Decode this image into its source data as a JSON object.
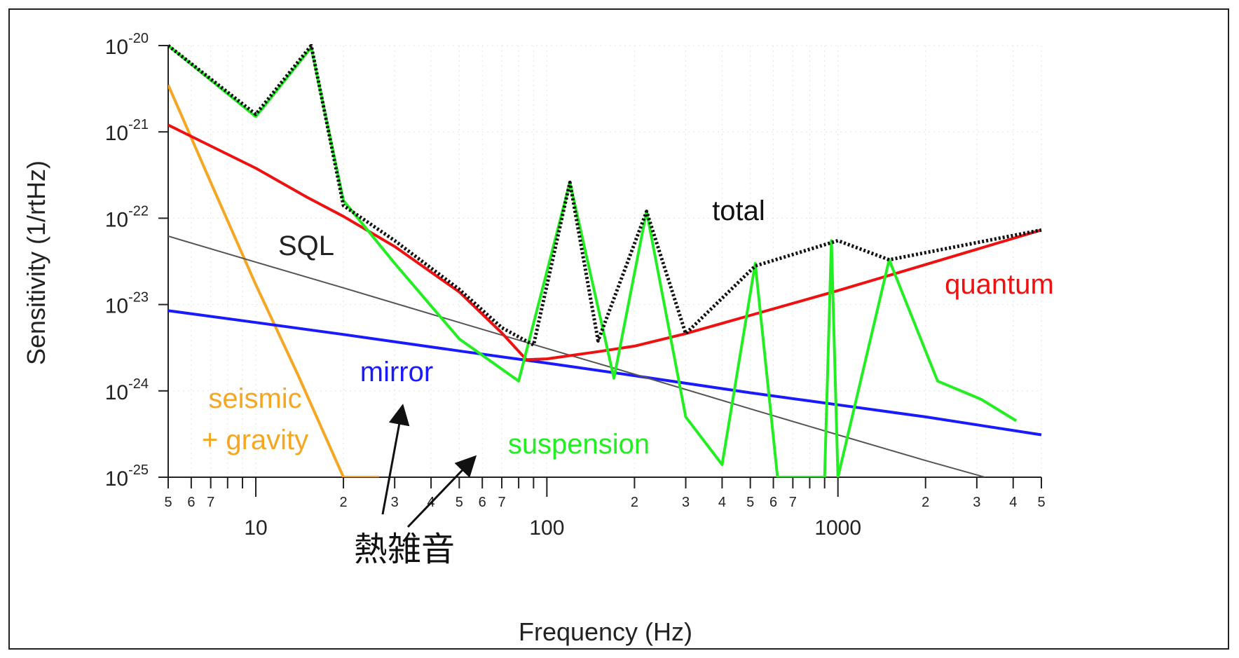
{
  "chart_data": {
    "type": "line",
    "xlabel": "Frequency (Hz)",
    "ylabel": "Sensitivity (1/rtHz)",
    "x_scale": "log",
    "y_scale": "log",
    "xlim": [
      5,
      5000
    ],
    "ylim": [
      1e-25,
      1e-20
    ],
    "x_major_ticks": [
      {
        "value": 10,
        "label": "10"
      },
      {
        "value": 100,
        "label": "100"
      },
      {
        "value": 1000,
        "label": "1000"
      }
    ],
    "x_minor_ticks": [
      {
        "value": 5,
        "label": "5"
      },
      {
        "value": 6,
        "label": "6"
      },
      {
        "value": 7,
        "label": "7"
      },
      {
        "value": 8,
        "label": ""
      },
      {
        "value": 9,
        "label": ""
      },
      {
        "value": 20,
        "label": "2"
      },
      {
        "value": 30,
        "label": "3"
      },
      {
        "value": 40,
        "label": "4"
      },
      {
        "value": 50,
        "label": "5"
      },
      {
        "value": 60,
        "label": "6"
      },
      {
        "value": 70,
        "label": "7"
      },
      {
        "value": 80,
        "label": ""
      },
      {
        "value": 90,
        "label": ""
      },
      {
        "value": 200,
        "label": "2"
      },
      {
        "value": 300,
        "label": "3"
      },
      {
        "value": 400,
        "label": "4"
      },
      {
        "value": 500,
        "label": "5"
      },
      {
        "value": 600,
        "label": "6"
      },
      {
        "value": 700,
        "label": "7"
      },
      {
        "value": 800,
        "label": ""
      },
      {
        "value": 900,
        "label": ""
      },
      {
        "value": 2000,
        "label": "2"
      },
      {
        "value": 3000,
        "label": "3"
      },
      {
        "value": 4000,
        "label": "4"
      },
      {
        "value": 5000,
        "label": "5"
      }
    ],
    "y_ticks": [
      {
        "value": 1e-20,
        "base": "10",
        "exp": "-20"
      },
      {
        "value": 1e-21,
        "base": "10",
        "exp": "-21"
      },
      {
        "value": 1e-22,
        "base": "10",
        "exp": "-22"
      },
      {
        "value": 1e-23,
        "base": "10",
        "exp": "-23"
      },
      {
        "value": 1e-24,
        "base": "10",
        "exp": "-24"
      },
      {
        "value": 1e-25,
        "base": "10",
        "exp": "-25"
      }
    ],
    "grid": "dotted",
    "series": [
      {
        "name": "seismic + gravity",
        "color": "#f5a623",
        "x": [
          5,
          7,
          10,
          14,
          20,
          26.5
        ],
        "y": [
          3.5e-21,
          2.6e-22,
          1.7e-23,
          1.5e-24,
          1e-25,
          1e-25
        ]
      },
      {
        "name": "mirror",
        "color": "#1a1aff",
        "x": [
          5,
          10,
          20,
          50,
          100,
          200,
          500,
          1000,
          2000,
          5000
        ],
        "y": [
          8.5e-24,
          6.2e-24,
          4.5e-24,
          2.9e-24,
          2.1e-24,
          1.5e-24,
          9.5e-25,
          6.9e-25,
          5e-25,
          3.1e-25
        ]
      },
      {
        "name": "SQL",
        "color": "#555555",
        "x": [
          5,
          10,
          20,
          50,
          100,
          200,
          500,
          1000,
          2000,
          3200
        ],
        "y": [
          6.2e-23,
          3.1e-23,
          1.56e-23,
          6.2e-24,
          3.1e-24,
          1.56e-24,
          6.2e-25,
          3.1e-25,
          1.56e-25,
          1e-25
        ]
      },
      {
        "name": "quantum",
        "color": "#ee1111",
        "x": [
          5,
          10,
          15,
          20,
          30,
          50,
          70,
          85,
          100,
          150,
          200,
          300,
          500,
          1000,
          2000,
          5000
        ],
        "y": [
          1.2e-21,
          3.8e-22,
          1.75e-22,
          1.05e-22,
          4.7e-23,
          1.4e-23,
          4.7e-24,
          2.3e-24,
          2.35e-24,
          2.85e-24,
          3.3e-24,
          4.6e-24,
          7.5e-24,
          1.45e-23,
          2.9e-23,
          7.3e-23
        ]
      },
      {
        "name": "suspension",
        "color": "#22ee22",
        "x": [
          5,
          10,
          15.5,
          20,
          30,
          50,
          80,
          120,
          170,
          220,
          300,
          400,
          520,
          620,
          900,
          950,
          1000,
          1500,
          2200,
          3100,
          4100
        ],
        "y": [
          1e-20,
          1.5e-21,
          9.5e-21,
          1.6e-22,
          3e-23,
          4e-24,
          1.3e-24,
          2.6e-22,
          1.4e-24,
          1.2e-22,
          5e-25,
          1.4e-25,
          3e-23,
          1e-25,
          1e-25,
          5.5e-23,
          1e-25,
          3.3e-23,
          1.3e-24,
          8e-25,
          4.5e-25
        ]
      },
      {
        "name": "total",
        "color": "#111111",
        "x": [
          5,
          10,
          15.5,
          20,
          30,
          50,
          70,
          90,
          120,
          150,
          220,
          300,
          520,
          1000,
          1500,
          5000
        ],
        "y": [
          1e-20,
          1.6e-21,
          1e-20,
          1.4e-22,
          5.5e-23,
          1.5e-23,
          5.4e-24,
          3.4e-24,
          2.6e-22,
          3.8e-24,
          1.2e-22,
          4.6e-24,
          2.8e-23,
          5.5e-23,
          3.3e-23,
          7.3e-23
        ]
      }
    ],
    "annotations": [
      {
        "id": "seismic-1",
        "text": "seismic",
        "color": "#f5a623"
      },
      {
        "id": "seismic-2",
        "text": "+ gravity",
        "color": "#f5a623"
      },
      {
        "id": "mirror",
        "text": "mirror",
        "color": "#1a1aff"
      },
      {
        "id": "sql",
        "text": "SQL",
        "color": "#222222"
      },
      {
        "id": "suspension",
        "text": "suspension",
        "color": "#22ee22"
      },
      {
        "id": "total",
        "text": "total",
        "color": "#111111"
      },
      {
        "id": "quantum",
        "text": "quantum",
        "color": "#ee1111"
      },
      {
        "id": "thermal",
        "text": "熱雑音",
        "color": "#111111"
      }
    ]
  }
}
